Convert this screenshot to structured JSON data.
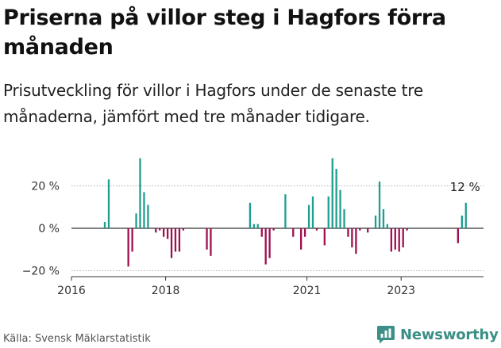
{
  "header": {
    "title": "Priserna på villor steg i Hagfors förra månaden",
    "subtitle": "Prisutveckling för villor i Hagfors under de senaste tre månaderna, jämfört med tre månader tidigare."
  },
  "footer": {
    "source": "Källa: Svensk Mäklarstatistik",
    "brand": "Newsworthy"
  },
  "colors": {
    "positive": "#1f9e8f",
    "negative": "#9e1151",
    "brand": "#3b8f86",
    "grid": "#9a9a9a",
    "zero_line": "#333333"
  },
  "chart_data": {
    "type": "bar",
    "y_unit": "%",
    "ylim": [
      -22,
      36
    ],
    "y_ticks": [
      20,
      0,
      -20
    ],
    "y_tick_labels": [
      "20 %",
      "0 %",
      "−20 %"
    ],
    "x_ticks": [
      2016,
      2018,
      2021,
      2023
    ],
    "x_tick_labels": [
      "2016",
      "2018",
      "2021",
      "2023"
    ],
    "xlim": [
      2016.0,
      2024.75
    ],
    "grid": true,
    "legend": "none",
    "annotation": {
      "text": "12 %",
      "x": 2024.375,
      "y": 12
    },
    "x": [
      2016.708,
      2016.792,
      2017.208,
      2017.292,
      2017.375,
      2017.458,
      2017.542,
      2017.625,
      2017.792,
      2017.875,
      2017.958,
      2018.042,
      2018.125,
      2018.208,
      2018.292,
      2018.375,
      2018.875,
      2018.958,
      2019.792,
      2019.875,
      2019.958,
      2020.042,
      2020.125,
      2020.208,
      2020.292,
      2020.542,
      2020.708,
      2020.875,
      2020.958,
      2021.042,
      2021.125,
      2021.208,
      2021.375,
      2021.458,
      2021.542,
      2021.625,
      2021.708,
      2021.792,
      2021.875,
      2021.958,
      2022.042,
      2022.125,
      2022.292,
      2022.458,
      2022.542,
      2022.625,
      2022.708,
      2022.792,
      2022.875,
      2022.958,
      2023.042,
      2023.125,
      2024.208,
      2024.292,
      2024.375
    ],
    "values": [
      3,
      23,
      -18,
      -11,
      7,
      33,
      17,
      11,
      -2,
      -1,
      -4,
      -5,
      -14,
      -11,
      -11,
      -1,
      -10,
      -13,
      12,
      2,
      2,
      -4,
      -17,
      -14,
      -1,
      16,
      -4,
      -10,
      -4,
      11,
      15,
      -1,
      -8,
      15,
      33,
      28,
      18,
      9,
      -4,
      -9,
      -12,
      -1,
      -2,
      6,
      22,
      9,
      2,
      -11,
      -10,
      -11,
      -9,
      -1,
      -7,
      6,
      12
    ]
  }
}
